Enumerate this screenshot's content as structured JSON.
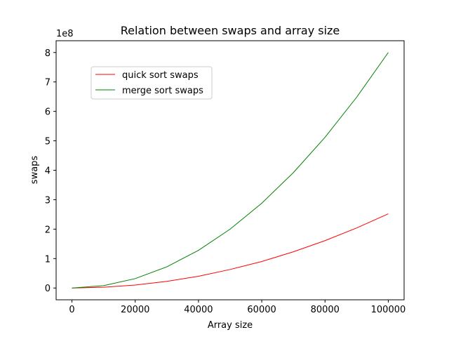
{
  "chart_data": {
    "type": "line",
    "title": "Relation between swaps and array size",
    "xlabel": "Array size",
    "ylabel": "swaps",
    "y_scale_label": "1e8",
    "xlim": [
      -5000,
      105000
    ],
    "ylim": [
      -0.4,
      8.4
    ],
    "x_ticks": [
      0,
      20000,
      40000,
      60000,
      80000,
      100000
    ],
    "y_ticks": [
      0,
      1,
      2,
      3,
      4,
      5,
      6,
      7,
      8
    ],
    "legend_position": "upper-left",
    "grid": false,
    "x": [
      0,
      10000,
      20000,
      30000,
      40000,
      50000,
      60000,
      70000,
      80000,
      90000,
      100000
    ],
    "series": [
      {
        "name": "quick sort swaps",
        "color": "#ff0000",
        "values": [
          0,
          0.025,
          0.1,
          0.225,
          0.4,
          0.63,
          0.9,
          1.23,
          1.61,
          2.04,
          2.52
        ]
      },
      {
        "name": "merge sort swaps",
        "color": "#008000",
        "values": [
          0,
          0.08,
          0.32,
          0.72,
          1.28,
          2.0,
          2.88,
          3.92,
          5.12,
          6.48,
          8.0
        ]
      }
    ]
  }
}
